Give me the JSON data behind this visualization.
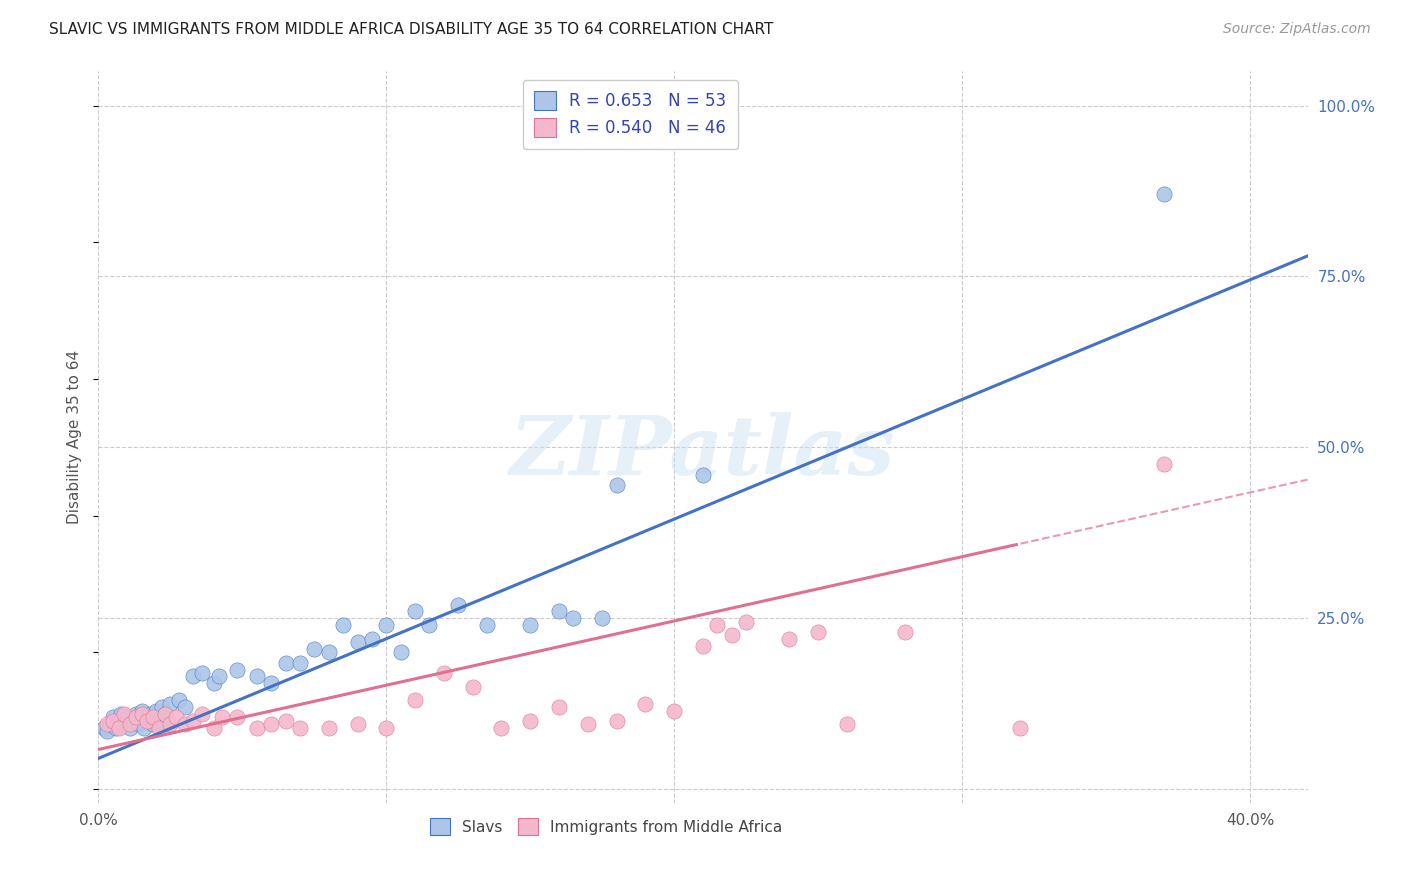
{
  "title": "SLAVIC VS IMMIGRANTS FROM MIDDLE AFRICA DISABILITY AGE 35 TO 64 CORRELATION CHART",
  "source": "Source: ZipAtlas.com",
  "ylabel": "Disability Age 35 to 64",
  "xlim": [
    0.0,
    0.42
  ],
  "ylim": [
    -0.02,
    1.05
  ],
  "yticks_right": [
    0.0,
    0.25,
    0.5,
    0.75,
    1.0
  ],
  "yticklabels_right": [
    "",
    "25.0%",
    "50.0%",
    "75.0%",
    "100.0%"
  ],
  "slavs_R": 0.653,
  "slavs_N": 53,
  "immigrants_R": 0.54,
  "immigrants_N": 46,
  "slavs_color": "#adc6e8",
  "slavs_line_color": "#4472c4",
  "immigrants_color": "#f4b8cc",
  "immigrants_line_color": "#e07090",
  "background_color": "#ffffff",
  "grid_color": "#cccccc",
  "slavs_line_slope": 1.75,
  "slavs_line_intercept": 0.045,
  "immigrants_line_slope": 0.94,
  "immigrants_line_intercept": 0.058,
  "slavs_x": [
    0.002,
    0.003,
    0.004,
    0.005,
    0.006,
    0.007,
    0.008,
    0.009,
    0.01,
    0.011,
    0.012,
    0.013,
    0.014,
    0.015,
    0.016,
    0.017,
    0.018,
    0.019,
    0.02,
    0.021,
    0.022,
    0.023,
    0.024,
    0.025,
    0.028,
    0.03,
    0.033,
    0.036,
    0.04,
    0.042,
    0.048,
    0.055,
    0.06,
    0.065,
    0.07,
    0.075,
    0.08,
    0.085,
    0.09,
    0.095,
    0.1,
    0.105,
    0.11,
    0.115,
    0.125,
    0.135,
    0.15,
    0.16,
    0.165,
    0.175,
    0.18,
    0.21,
    0.37
  ],
  "slavs_y": [
    0.09,
    0.085,
    0.095,
    0.105,
    0.09,
    0.1,
    0.11,
    0.095,
    0.105,
    0.09,
    0.1,
    0.11,
    0.095,
    0.115,
    0.09,
    0.105,
    0.11,
    0.095,
    0.115,
    0.1,
    0.12,
    0.11,
    0.095,
    0.125,
    0.13,
    0.12,
    0.165,
    0.17,
    0.155,
    0.165,
    0.175,
    0.165,
    0.155,
    0.185,
    0.185,
    0.205,
    0.2,
    0.24,
    0.215,
    0.22,
    0.24,
    0.2,
    0.26,
    0.24,
    0.27,
    0.24,
    0.24,
    0.26,
    0.25,
    0.25,
    0.445,
    0.46,
    0.87
  ],
  "immigrants_x": [
    0.003,
    0.005,
    0.007,
    0.009,
    0.011,
    0.013,
    0.015,
    0.017,
    0.019,
    0.021,
    0.023,
    0.025,
    0.027,
    0.03,
    0.033,
    0.036,
    0.04,
    0.043,
    0.048,
    0.055,
    0.06,
    0.065,
    0.07,
    0.08,
    0.09,
    0.1,
    0.11,
    0.12,
    0.13,
    0.14,
    0.15,
    0.16,
    0.17,
    0.18,
    0.19,
    0.2,
    0.21,
    0.215,
    0.22,
    0.225,
    0.24,
    0.25,
    0.26,
    0.28,
    0.32,
    0.37
  ],
  "immigrants_y": [
    0.095,
    0.1,
    0.09,
    0.11,
    0.095,
    0.105,
    0.11,
    0.1,
    0.105,
    0.09,
    0.11,
    0.095,
    0.105,
    0.095,
    0.1,
    0.11,
    0.09,
    0.105,
    0.105,
    0.09,
    0.095,
    0.1,
    0.09,
    0.09,
    0.095,
    0.09,
    0.13,
    0.17,
    0.15,
    0.09,
    0.1,
    0.12,
    0.095,
    0.1,
    0.125,
    0.115,
    0.21,
    0.24,
    0.225,
    0.245,
    0.22,
    0.23,
    0.095,
    0.23,
    0.09,
    0.475
  ]
}
